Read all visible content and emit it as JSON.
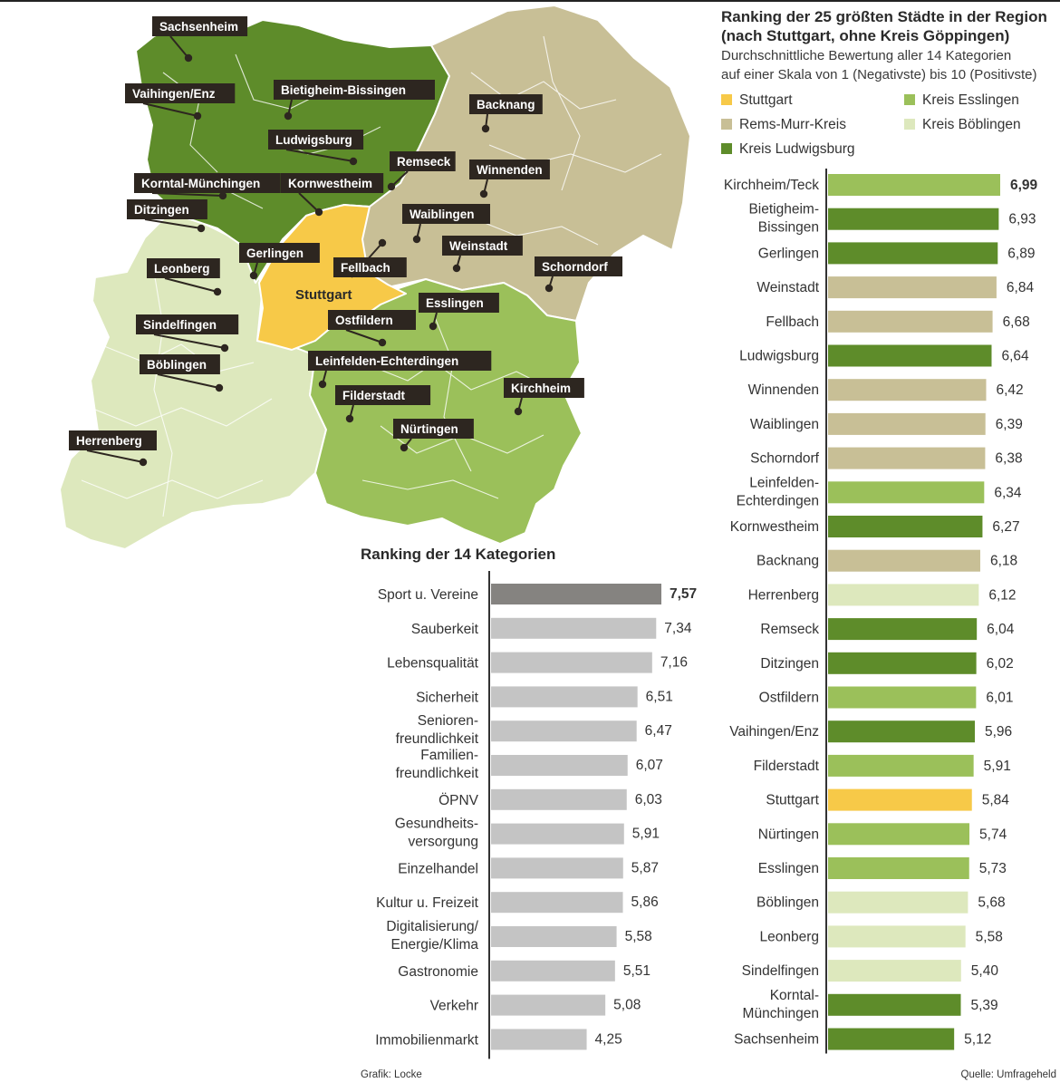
{
  "header": {
    "title_line1": "Ranking der 25 größten Städte in der Region",
    "title_line2": "(nach Stuttgart, ohne Kreis Göppingen)",
    "subtitle_line1": "Durchschnittliche Bewertung aller 14 Kategorien",
    "subtitle_line2": "auf einer Skala von 1 (Negativste) bis 10 (Positivste)"
  },
  "legend": [
    {
      "label": "Stuttgart",
      "color": "#f7c948"
    },
    {
      "label": "Rems-Murr-Kreis",
      "color": "#c8bf96"
    },
    {
      "label": "Kreis Ludwigsburg",
      "color": "#5e8c2a"
    },
    {
      "label": "Kreis Esslingen",
      "color": "#9bc05a"
    },
    {
      "label": "Kreis Böblingen",
      "color": "#dde8bd"
    }
  ],
  "colors": {
    "stuttgart": "#f7c948",
    "rems_murr": "#c8bf96",
    "ludwigsburg": "#5e8c2a",
    "esslingen": "#9bc05a",
    "boeblingen": "#dde8bd",
    "category_top": "#858380",
    "category": "#c4c4c4",
    "label_bg": "#2d2620"
  },
  "map": {
    "labels": [
      {
        "text": "Sachsenheim"
      },
      {
        "text": "Vaihingen/Enz"
      },
      {
        "text": "Bietigheim-Bissingen"
      },
      {
        "text": "Backnang"
      },
      {
        "text": "Ludwigsburg"
      },
      {
        "text": "Remseck"
      },
      {
        "text": "Winnenden"
      },
      {
        "text": "Korntal-Münchingen"
      },
      {
        "text": "Kornwestheim"
      },
      {
        "text": "Ditzingen"
      },
      {
        "text": "Waiblingen"
      },
      {
        "text": "Weinstadt"
      },
      {
        "text": "Gerlingen"
      },
      {
        "text": "Fellbach"
      },
      {
        "text": "Leonberg"
      },
      {
        "text": "Schorndorf"
      },
      {
        "text": "Esslingen"
      },
      {
        "text": "Ostfildern"
      },
      {
        "text": "Sindelfingen"
      },
      {
        "text": "Böblingen"
      },
      {
        "text": "Leinfelden-Echterdingen"
      },
      {
        "text": "Filderstadt"
      },
      {
        "text": "Kirchheim"
      },
      {
        "text": "Nürtingen"
      },
      {
        "text": "Herrenberg"
      }
    ],
    "center_label": "Stuttgart"
  },
  "chart_data": [
    {
      "type": "bar",
      "orientation": "horizontal",
      "title": "Ranking der 25 größten Städte in der Region (nach Stuttgart, ohne Kreis Göppingen)",
      "subtitle": "Durchschnittliche Bewertung aller 14 Kategorien auf einer Skala von 1 (Negativste) bis 10 (Positivste)",
      "categories": [
        [
          "Kirchheim/Teck"
        ],
        [
          "Bietigheim-",
          "Bissingen"
        ],
        [
          "Gerlingen"
        ],
        [
          "Weinstadt"
        ],
        [
          "Fellbach"
        ],
        [
          "Ludwigsburg"
        ],
        [
          "Winnenden"
        ],
        [
          "Waiblingen"
        ],
        [
          "Schorndorf"
        ],
        [
          "Leinfelden-",
          "Echterdingen"
        ],
        [
          "Kornwestheim"
        ],
        [
          "Backnang"
        ],
        [
          "Herrenberg"
        ],
        [
          "Remseck"
        ],
        [
          "Ditzingen"
        ],
        [
          "Ostfildern"
        ],
        [
          "Vaihingen/Enz"
        ],
        [
          "Filderstadt"
        ],
        [
          "Stuttgart"
        ],
        [
          "Nürtingen"
        ],
        [
          "Esslingen"
        ],
        [
          "Böblingen"
        ],
        [
          "Leonberg"
        ],
        [
          "Sindelfingen"
        ],
        [
          "Korntal-",
          "Münchingen"
        ],
        [
          "Sachsenheim"
        ]
      ],
      "values": [
        6.99,
        6.93,
        6.89,
        6.84,
        6.68,
        6.64,
        6.42,
        6.39,
        6.38,
        6.34,
        6.27,
        6.18,
        6.12,
        6.04,
        6.02,
        6.01,
        5.96,
        5.91,
        5.84,
        5.74,
        5.73,
        5.68,
        5.58,
        5.4,
        5.39,
        5.12
      ],
      "value_labels": [
        "6,99",
        "6,93",
        "6,89",
        "6,84",
        "6,68",
        "6,64",
        "6,42",
        "6,39",
        "6,38",
        "6,34",
        "6,27",
        "6,18",
        "6,12",
        "6,04",
        "6,02",
        "6,01",
        "5,96",
        "5,91",
        "5,84",
        "5,74",
        "5,73",
        "5,68",
        "5,58",
        "5,40",
        "5,39",
        "5,12"
      ],
      "regions": [
        "esslingen",
        "ludwigsburg",
        "ludwigsburg",
        "rems_murr",
        "rems_murr",
        "ludwigsburg",
        "rems_murr",
        "rems_murr",
        "rems_murr",
        "esslingen",
        "ludwigsburg",
        "rems_murr",
        "boeblingen",
        "ludwigsburg",
        "ludwigsburg",
        "esslingen",
        "ludwigsburg",
        "esslingen",
        "stuttgart",
        "esslingen",
        "esslingen",
        "boeblingen",
        "boeblingen",
        "boeblingen",
        "ludwigsburg",
        "ludwigsburg"
      ],
      "highlight_index": 0,
      "xlim": [
        0,
        7
      ]
    },
    {
      "type": "bar",
      "orientation": "horizontal",
      "title": "Ranking der 14 Kategorien",
      "categories": [
        [
          "Sport u. Vereine"
        ],
        [
          "Sauberkeit"
        ],
        [
          "Lebensqualität"
        ],
        [
          "Sicherheit"
        ],
        [
          "Senioren-",
          "freundlichkeit"
        ],
        [
          "Familien-",
          "freundlichkeit"
        ],
        [
          "ÖPNV"
        ],
        [
          "Gesundheits-",
          "versorgung"
        ],
        [
          "Einzelhandel"
        ],
        [
          "Kultur u. Freizeit"
        ],
        [
          "Digitalisierung/",
          "Energie/Klima"
        ],
        [
          "Gastronomie"
        ],
        [
          "Verkehr"
        ],
        [
          "Immobilienmarkt"
        ]
      ],
      "values": [
        7.57,
        7.34,
        7.16,
        6.51,
        6.47,
        6.07,
        6.03,
        5.91,
        5.87,
        5.86,
        5.58,
        5.51,
        5.08,
        4.25
      ],
      "value_labels": [
        "7,57",
        "7,34",
        "7,16",
        "6,51",
        "6,47",
        "6,07",
        "6,03",
        "5,91",
        "5,87",
        "5,86",
        "5,58",
        "5,51",
        "5,08",
        "4,25"
      ],
      "highlight_index": 0,
      "xlim": [
        0,
        7.57
      ]
    }
  ],
  "footer": {
    "left": "Grafik: Locke",
    "right": "Quelle: Umfrageheld"
  }
}
